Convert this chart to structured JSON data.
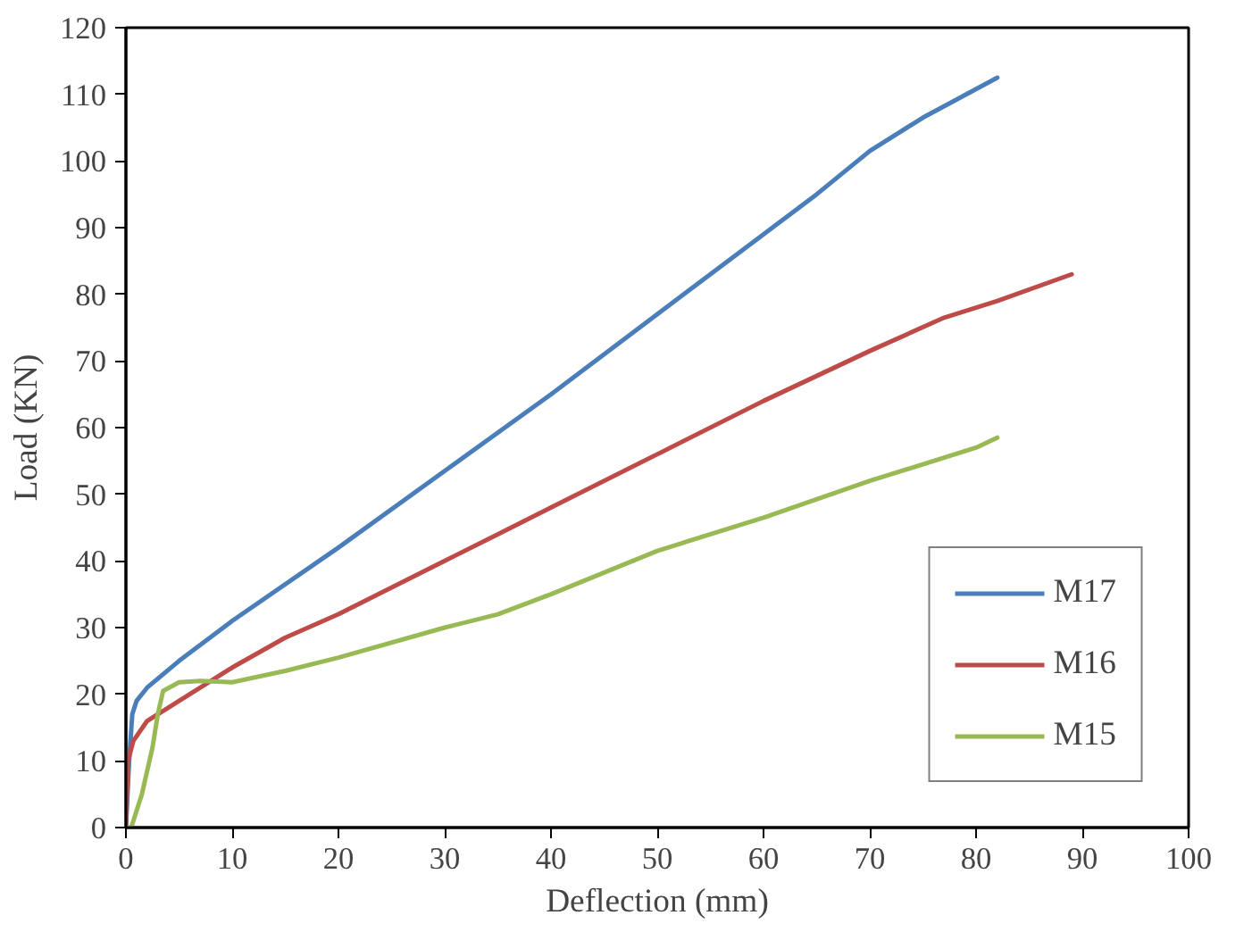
{
  "chart_data": {
    "type": "line",
    "xlabel": "Deflection (mm)",
    "ylabel": "Load (KN)",
    "xlim": [
      0,
      100
    ],
    "xticks": [
      0,
      10,
      20,
      30,
      40,
      50,
      60,
      70,
      80,
      90,
      100
    ],
    "ylim": [
      0,
      120
    ],
    "yticks": [
      0,
      10,
      20,
      30,
      40,
      50,
      60,
      70,
      80,
      90,
      100,
      110,
      120
    ],
    "grid": false,
    "legend": "bottom right",
    "marker": "none",
    "line_style": "solid",
    "series": [
      {
        "name": "M17",
        "color": "#4a7ebb",
        "x": [
          0,
          0.3,
          0.6,
          1,
          2,
          5,
          10,
          20,
          30,
          40,
          50,
          60,
          65,
          70,
          75,
          82
        ],
        "values": [
          0,
          10,
          17,
          19,
          21,
          25,
          31,
          42,
          53.5,
          65,
          77,
          89,
          95,
          101.5,
          106.5,
          112.5
        ]
      },
      {
        "name": "M16",
        "color": "#be4b48",
        "x": [
          0,
          0.2,
          0.7,
          2,
          5,
          10,
          15,
          20,
          30,
          35,
          40,
          50,
          60,
          70,
          77,
          82,
          89
        ],
        "values": [
          0,
          10,
          13,
          16,
          19,
          24,
          28.5,
          32,
          40,
          44,
          48,
          56,
          64,
          71.5,
          76.5,
          79,
          83
        ]
      },
      {
        "name": "M15",
        "color": "#98b954",
        "x": [
          0,
          0.5,
          1.5,
          2.5,
          3,
          3.5,
          5,
          7,
          10,
          15,
          20,
          30,
          35,
          40,
          50,
          60,
          70,
          77,
          80,
          82
        ],
        "values": [
          0,
          0,
          5,
          12,
          17,
          20.5,
          21.8,
          22,
          21.8,
          23.5,
          25.5,
          30,
          32,
          35,
          41.5,
          46.5,
          52,
          55.5,
          57,
          58.5
        ]
      }
    ]
  }
}
